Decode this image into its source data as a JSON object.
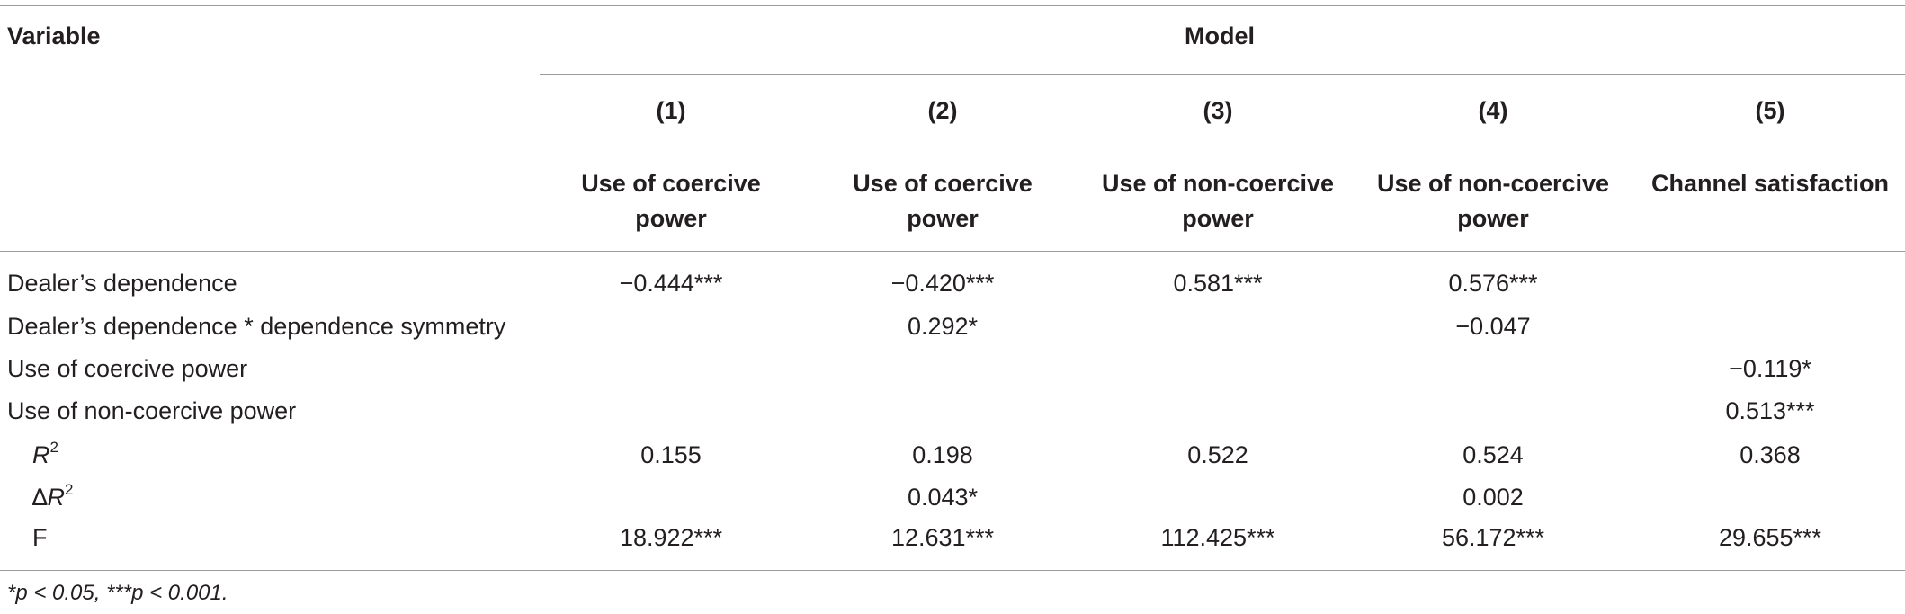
{
  "table": {
    "header": {
      "variable_label": "Variable",
      "model_label": "Model",
      "model_numbers": [
        "(1)",
        "(2)",
        "(3)",
        "(4)",
        "(5)"
      ],
      "outcomes": [
        {
          "line1": "Use of coercive",
          "line2": "power"
        },
        {
          "line1": "Use of coercive",
          "line2": "power"
        },
        {
          "line1": "Use of non-coercive",
          "line2": "power"
        },
        {
          "line1": "Use of non-coercive",
          "line2": "power"
        },
        {
          "line1": "Channel satisfaction",
          "line2": ""
        }
      ]
    },
    "rows": [
      {
        "label": "Dealer’s dependence",
        "values": [
          "−0.444***",
          "−0.420***",
          "0.581***",
          "0.576***",
          ""
        ]
      },
      {
        "label": "Dealer’s dependence * dependence symmetry",
        "values": [
          "",
          "0.292*",
          "",
          "−0.047",
          ""
        ]
      },
      {
        "label": "Use of coercive power",
        "values": [
          "",
          "",
          "",
          "",
          "−0.119*"
        ]
      },
      {
        "label": "Use of non-coercive power",
        "values": [
          "",
          "",
          "",
          "",
          "0.513***"
        ]
      },
      {
        "label_prefix": "",
        "label_main": "R",
        "label_sup": "2",
        "values": [
          "0.155",
          "0.198",
          "0.522",
          "0.524",
          "0.368"
        ]
      },
      {
        "label_prefix": "∆",
        "label_main": "R",
        "label_sup": "2",
        "values": [
          "",
          "0.043*",
          "",
          "0.002",
          ""
        ]
      },
      {
        "label": "F",
        "values": [
          "18.922***",
          "12.631***",
          "112.425***",
          "56.172***",
          "29.655***"
        ]
      }
    ],
    "footnote": "*p < 0.05, ***p < 0.001."
  }
}
